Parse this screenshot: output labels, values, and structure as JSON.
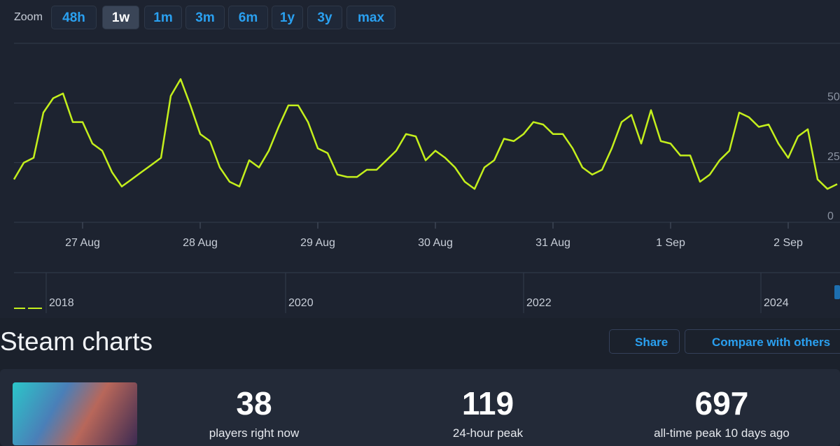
{
  "toolbar": {
    "zoom_label": "Zoom",
    "zoom_options": [
      "48h",
      "1w",
      "1m",
      "3m",
      "6m",
      "1y",
      "3y",
      "max"
    ],
    "active_zoom": 1
  },
  "chart_data": {
    "type": "line",
    "categories": [
      null,
      null,
      null,
      null,
      null,
      null,
      null,
      "27 Aug",
      null,
      null,
      null,
      null,
      null,
      null,
      null,
      null,
      null,
      null,
      null,
      "28 Aug",
      null,
      null,
      null,
      null,
      null,
      null,
      null,
      null,
      null,
      null,
      null,
      "29 Aug",
      null,
      null,
      null,
      null,
      null,
      null,
      null,
      null,
      null,
      null,
      null,
      "30 Aug",
      null,
      null,
      null,
      null,
      null,
      null,
      null,
      null,
      null,
      null,
      null,
      "31 Aug",
      null,
      null,
      null,
      null,
      null,
      null,
      null,
      null,
      null,
      null,
      null,
      "1 Sep",
      null,
      null,
      null,
      null,
      null,
      null,
      null,
      null,
      null,
      null,
      null,
      "2 Sep",
      null,
      null,
      null,
      null,
      null
    ],
    "series": [
      {
        "color": "#c4ef1c",
        "values": [
          18,
          25,
          27,
          46,
          52,
          54,
          42,
          42,
          33,
          30,
          21,
          15,
          18,
          21,
          24,
          27,
          53,
          60,
          49,
          37,
          34,
          23,
          17,
          15,
          26,
          23,
          30,
          40,
          49,
          49,
          42,
          31,
          29,
          20,
          19,
          19,
          22,
          22,
          26,
          30,
          37,
          36,
          26,
          30,
          27,
          23,
          17,
          14,
          23,
          26,
          35,
          34,
          37,
          42,
          41,
          37,
          37,
          31,
          23,
          20,
          22,
          31,
          42,
          45,
          33,
          47,
          34,
          33,
          28,
          28,
          17,
          20,
          26,
          30,
          46,
          44,
          40,
          41,
          33,
          27,
          36,
          39,
          18,
          14,
          16
        ]
      }
    ],
    "ylim": [
      0,
      75
    ],
    "yticks": [
      0,
      25,
      50
    ],
    "grid": true
  },
  "navigator": {
    "years": [
      "2018",
      "2020",
      "2022",
      "2024"
    ]
  },
  "section": {
    "title": "Steam charts",
    "actions": [
      "Share",
      "Compare with others"
    ]
  },
  "stats": [
    {
      "value": 38,
      "label": "players right now"
    },
    {
      "value": 119,
      "label": "24-hour peak"
    },
    {
      "value": 697,
      "label": "all-time peak 10 days ago"
    }
  ]
}
